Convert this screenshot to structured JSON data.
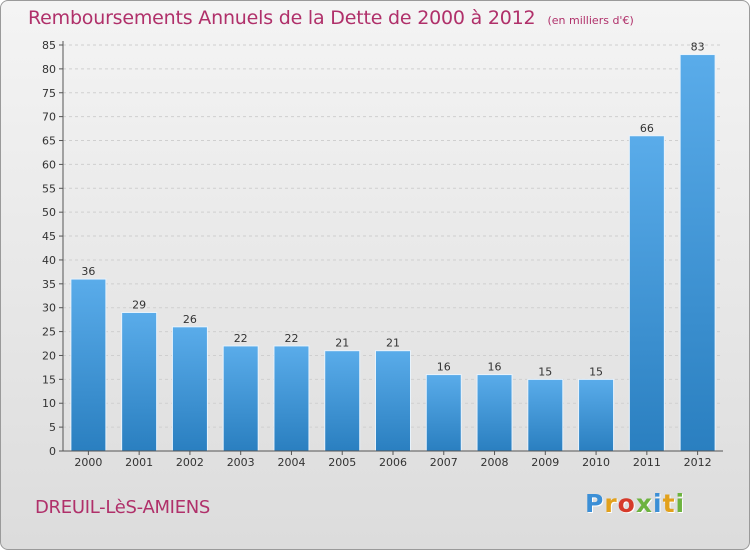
{
  "header": {
    "title": "Remboursements Annuels de la Dette de 2000 à 2012",
    "unit": "(en milliers d'€)"
  },
  "footer": {
    "city": "DREUIL-LèS-AMIENS",
    "logo": [
      "P",
      "r",
      "o",
      "x",
      "i",
      "t",
      "i"
    ],
    "logo_colors": [
      "#3c8fd6",
      "#e2a11c",
      "#d63a2a",
      "#6db33f",
      "#3c8fd6",
      "#e2a11c",
      "#6db33f"
    ]
  },
  "chart_data": {
    "type": "bar",
    "title": "Remboursements Annuels de la Dette de 2000 à 2012",
    "xlabel": "",
    "ylabel": "",
    "categories": [
      "2000",
      "2001",
      "2002",
      "2003",
      "2004",
      "2005",
      "2006",
      "2007",
      "2008",
      "2009",
      "2010",
      "2011",
      "2012"
    ],
    "values": [
      36,
      29,
      26,
      22,
      22,
      21,
      21,
      16,
      16,
      15,
      15,
      66,
      83
    ],
    "ylim": [
      0,
      85
    ],
    "yticks": [
      0,
      5,
      10,
      15,
      20,
      25,
      30,
      35,
      40,
      45,
      50,
      55,
      60,
      65,
      70,
      75,
      80,
      85
    ],
    "grid": true,
    "bar_color_light": "#5aacea",
    "bar_color_dark": "#2a7fc0"
  }
}
